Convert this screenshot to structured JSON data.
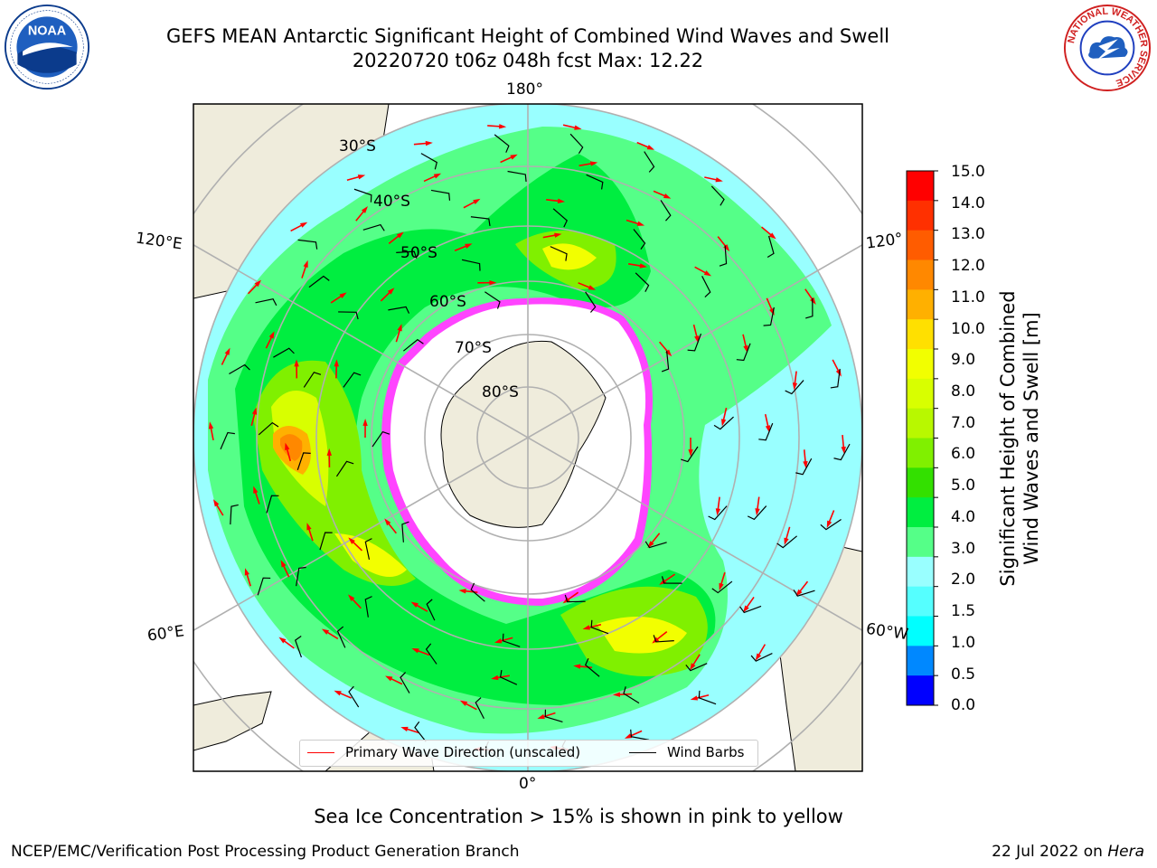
{
  "title_line1": "GEFS MEAN Antarctic Significant Height of Combined Wind Waves and Swell",
  "title_line2": "20220720 t06z 048h fcst   Max: 12.22",
  "map": {
    "longitude_labels": {
      "top": "180°",
      "bottom": "0°",
      "upper_left": "120°E",
      "upper_right": "120°",
      "lower_left": "60°E",
      "lower_right": "60°W"
    },
    "latitude_labels": [
      "30°S",
      "40°S",
      "50°S",
      "60°S",
      "70°S",
      "80°S"
    ]
  },
  "colorbar": {
    "label_line1": "Significant Height of Combined",
    "label_line2": "Wind Waves and Swell [m]",
    "ticks": [
      "15.0",
      "14.0",
      "13.0",
      "12.0",
      "11.0",
      "10.0",
      "9.0",
      "8.0",
      "7.0",
      "6.0",
      "5.0",
      "4.0",
      "3.0",
      "2.0",
      "1.5",
      "1.0",
      "0.5",
      "0.0"
    ],
    "colors": [
      "#ff0000",
      "#ff3000",
      "#ff5c00",
      "#ff8800",
      "#ffb000",
      "#ffe000",
      "#f2ff00",
      "#d8ff00",
      "#b8f800",
      "#80f000",
      "#33e000",
      "#00ee40",
      "#55ff88",
      "#99ffff",
      "#55ffff",
      "#00ffff",
      "#0088ff",
      "#0000ff"
    ]
  },
  "legend": {
    "wave_label": "Primary Wave Direction (unscaled)",
    "wave_color": "#ff0000",
    "wind_label": "Wind Barbs",
    "wind_color": "#000000"
  },
  "footer_note": "Sea Ice Concentration > 15% is shown in pink to yellow",
  "credit": "NCEP/EMC/Verification Post Processing Product Generation Branch",
  "date_text": "22 Jul 2022 on",
  "date_host": "Hera",
  "logos": {
    "left": "NOAA",
    "right_ring": "NATIONAL WEATHER SERVICE"
  }
}
